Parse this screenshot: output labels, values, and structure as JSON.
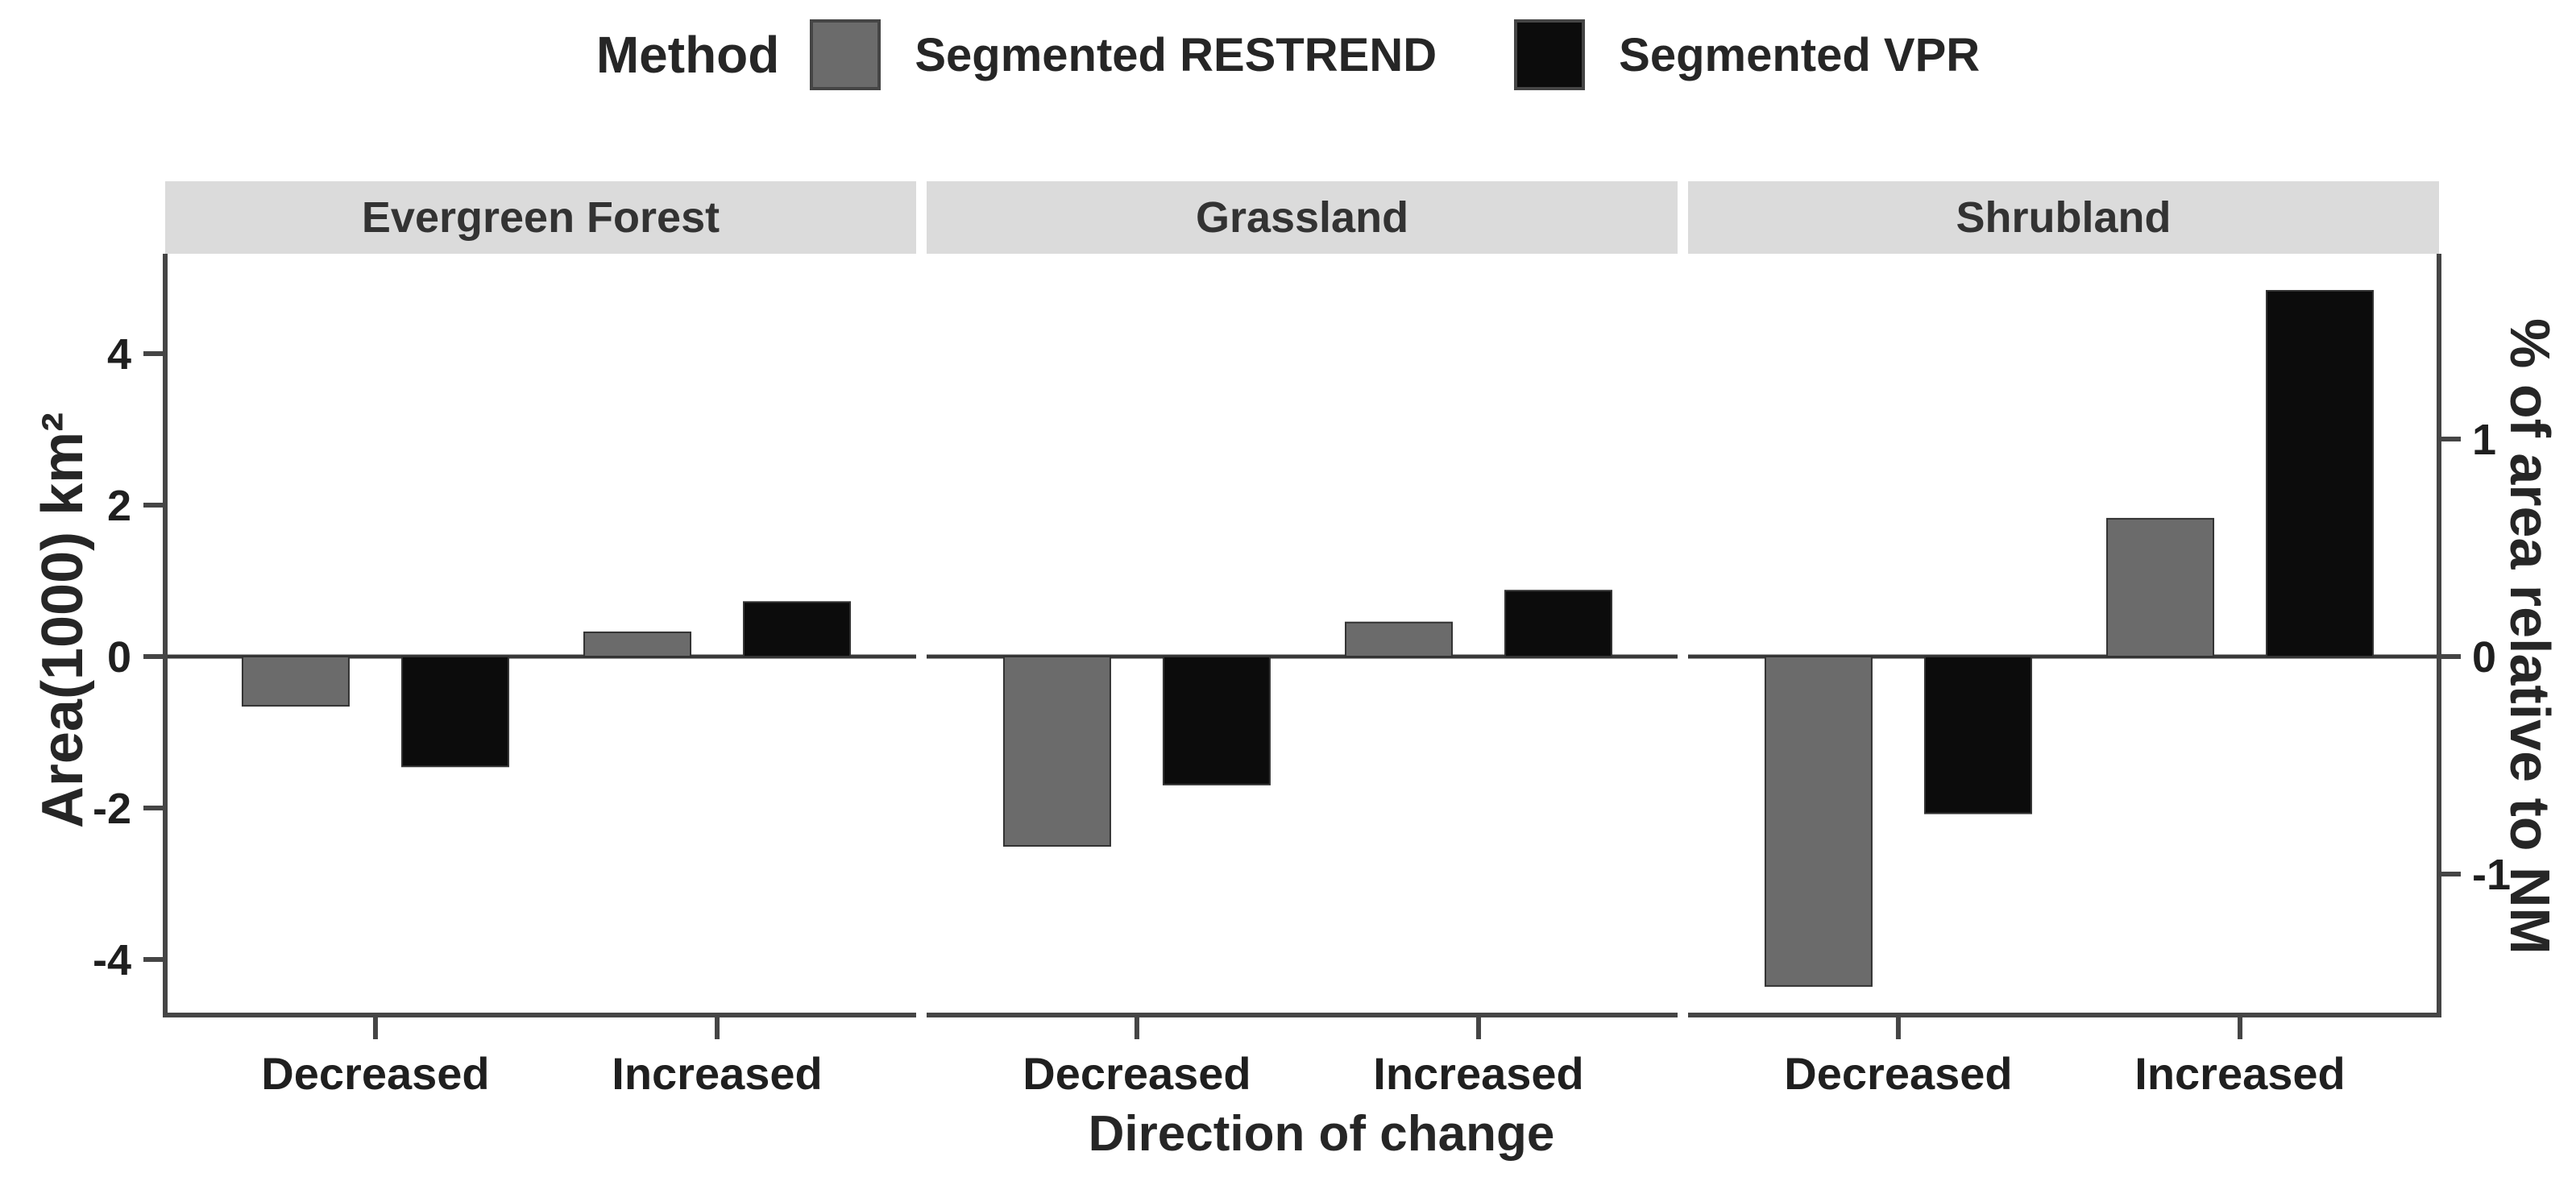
{
  "chart_data": {
    "type": "bar",
    "legend": {
      "title": "Method",
      "items": [
        {
          "label": "Segmented RESTREND",
          "color": "#6b6b6b"
        },
        {
          "label": "Segmented VPR",
          "color": "#0c0c0c"
        }
      ]
    },
    "categories": [
      "Decreased",
      "Increased"
    ],
    "panels": [
      {
        "label": "Evergreen Forest",
        "series": [
          {
            "name": "Segmented RESTREND",
            "color": "#6b6b6b",
            "values": [
              -0.65,
              0.32
            ]
          },
          {
            "name": "Segmented VPR",
            "color": "#0c0c0c",
            "values": [
              -1.45,
              0.72
            ]
          }
        ]
      },
      {
        "label": "Grassland",
        "series": [
          {
            "name": "Segmented RESTREND",
            "color": "#6b6b6b",
            "values": [
              -2.5,
              0.45
            ]
          },
          {
            "name": "Segmented VPR",
            "color": "#0c0c0c",
            "values": [
              -1.69,
              0.87
            ]
          }
        ]
      },
      {
        "label": "Shrubland",
        "series": [
          {
            "name": "Segmented RESTREND",
            "color": "#6b6b6b",
            "values": [
              -4.35,
              1.82
            ]
          },
          {
            "name": "Segmented VPR",
            "color": "#0c0c0c",
            "values": [
              -2.07,
              4.83
            ]
          }
        ]
      }
    ],
    "axes": {
      "left": {
        "title": "Area(1000) km²",
        "ticks": [
          "4",
          "2",
          "0",
          "-2",
          "-4"
        ],
        "tick_values": [
          4,
          2,
          0,
          -2,
          -4
        ]
      },
      "right": {
        "title": "% of area relative to NM",
        "ticks": [
          "1",
          "0",
          "-1"
        ],
        "tick_values": [
          1,
          0,
          -1
        ],
        "units_per_percent": 2.87
      },
      "bottom": {
        "title": "Direction of change"
      }
    },
    "ylim": [
      -4.77,
      5.32
    ],
    "grid": "off",
    "legend_position": "top"
  },
  "colors": {
    "background": "#ffffff",
    "strip_bg": "#dbdbdb",
    "axis_line": "#454545",
    "zero_line": "#383838",
    "tick_text": "#1f1f1f",
    "bar_outline": "#333333"
  }
}
